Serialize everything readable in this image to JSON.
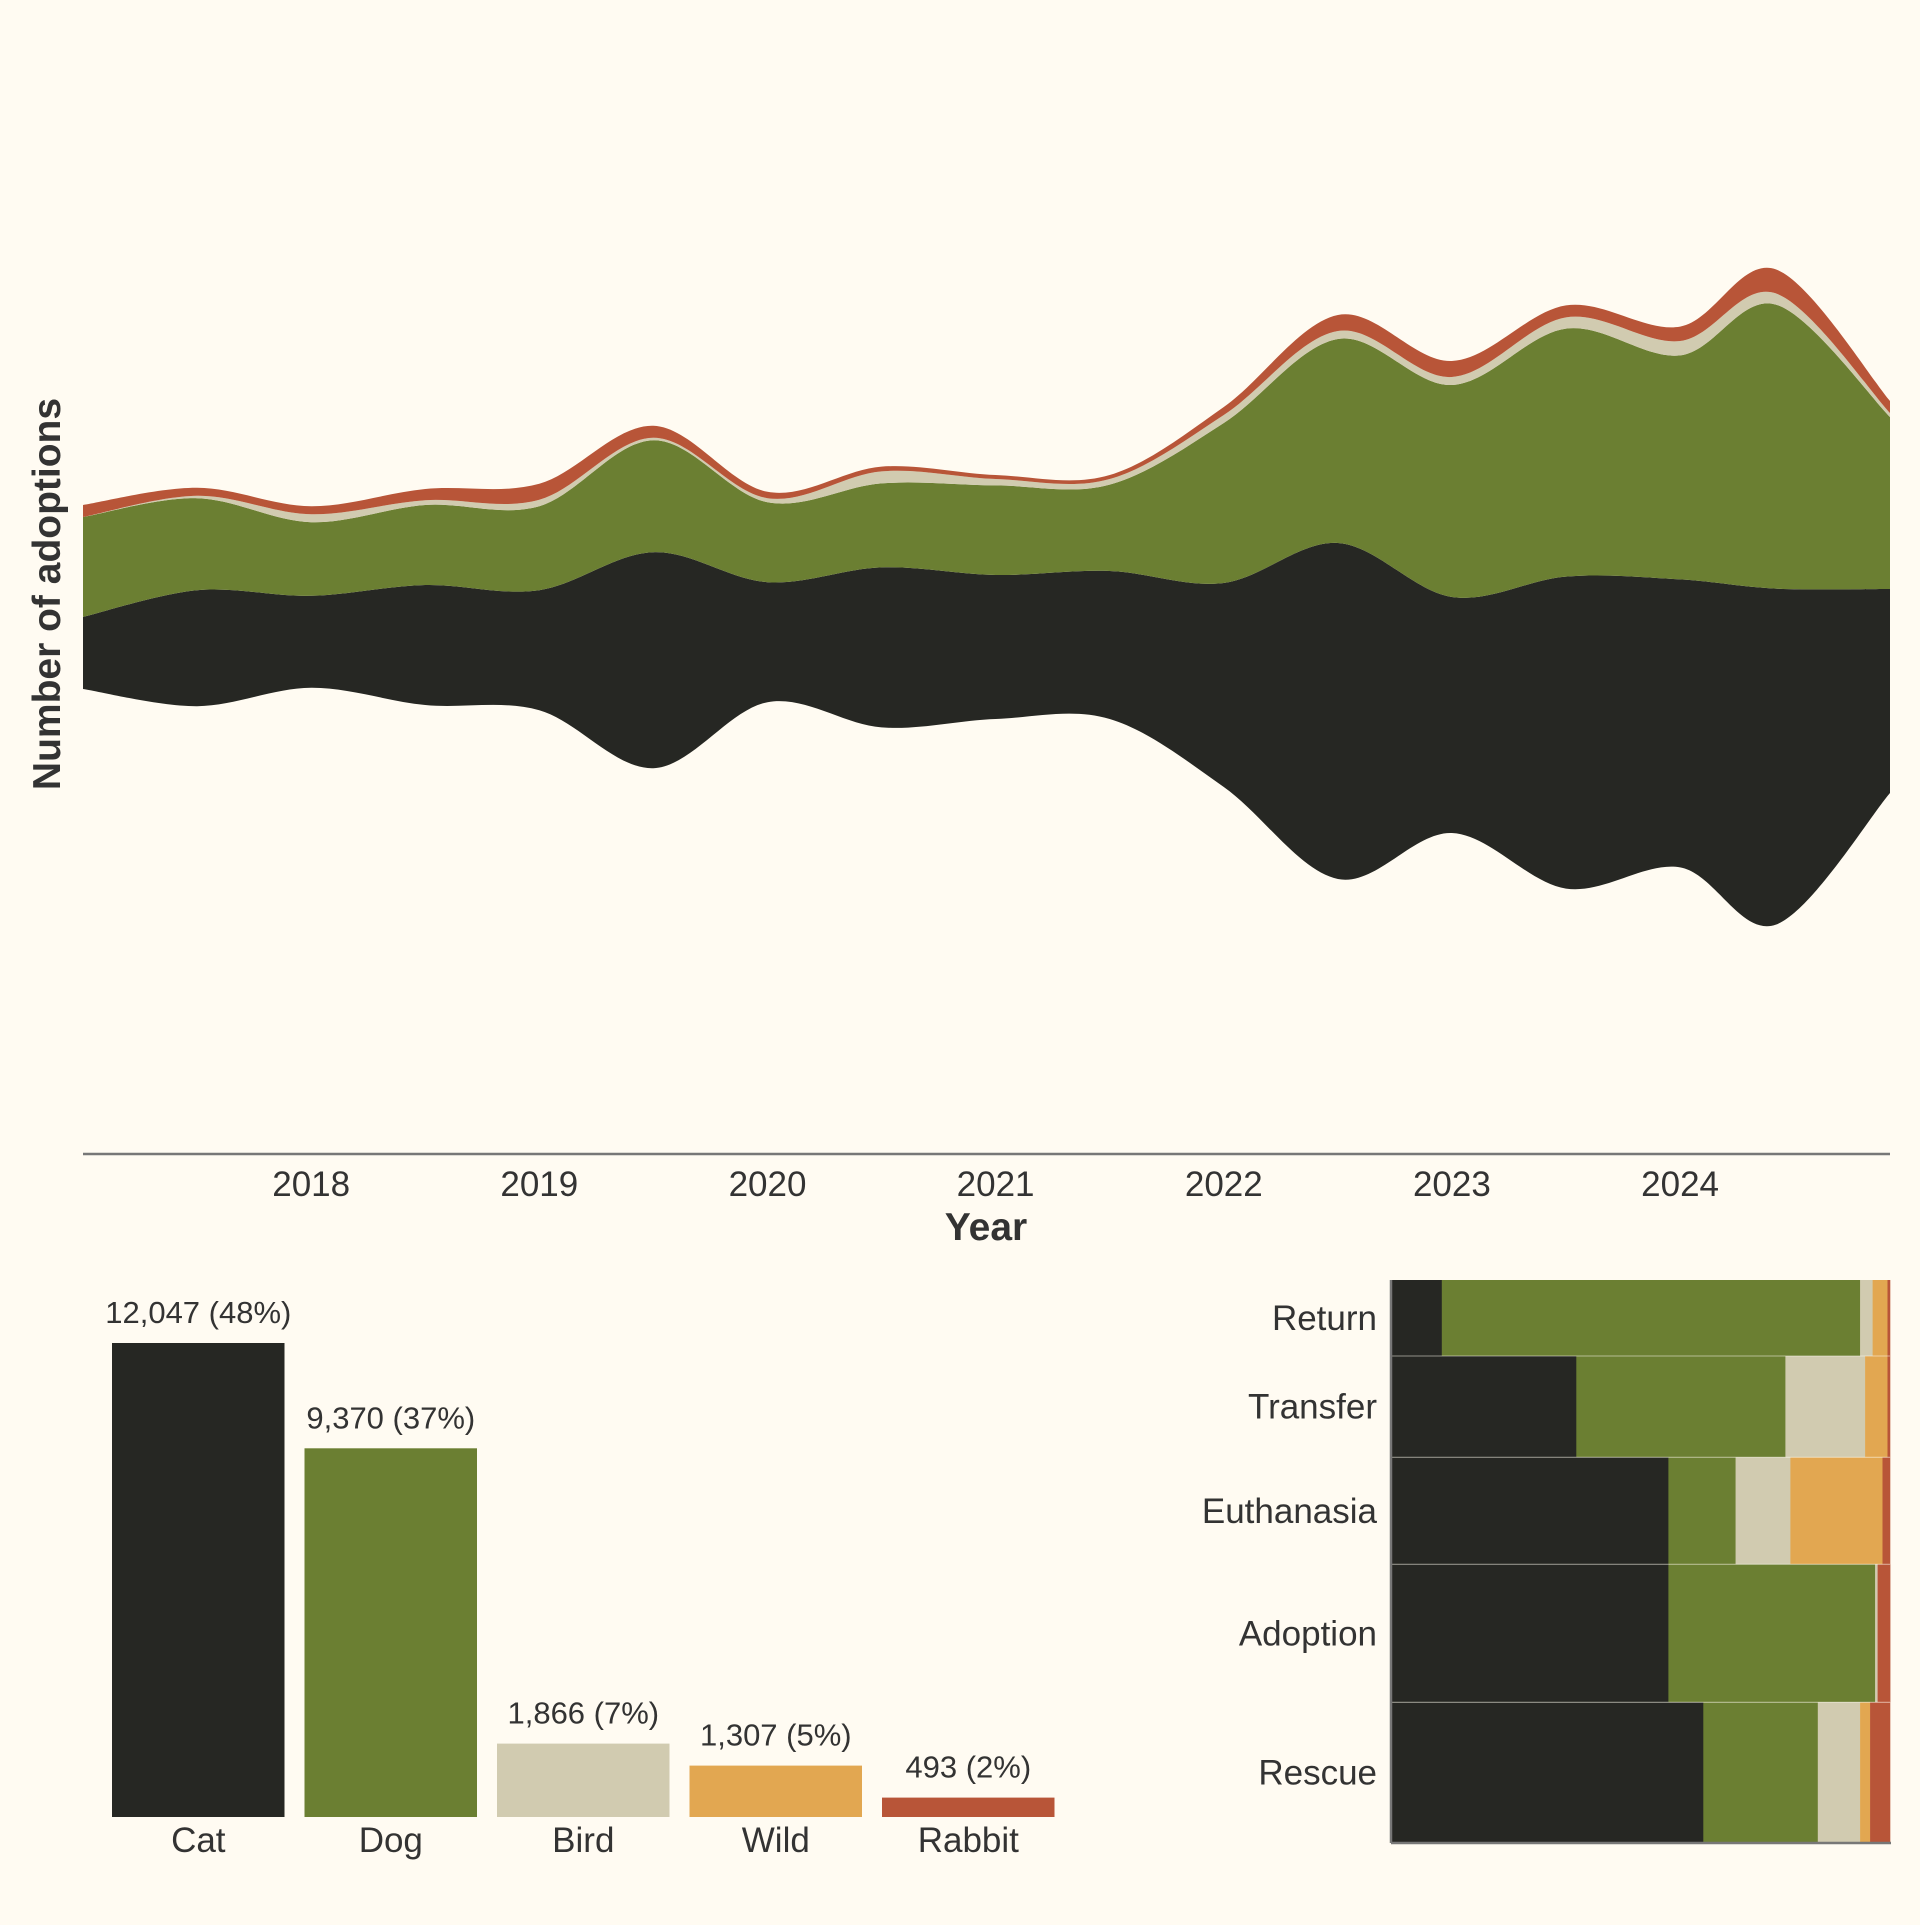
{
  "colors": {
    "background": "#fffbf2",
    "Cat": "#262723",
    "Dog": "#6b7f32",
    "Bird": "#d1cbb0",
    "Wild": "#e2a751",
    "Rabbit": "#b85538",
    "axis": "#777777",
    "text": "#333333"
  },
  "chart_data": [
    {
      "type": "area",
      "subtype": "streamgraph",
      "xlabel": "Year",
      "ylabel": "Number of adoptions",
      "x_ticks": [
        "2018",
        "2019",
        "2020",
        "2021",
        "2022",
        "2023",
        "2024"
      ],
      "xlim": [
        2017.0,
        2024.92
      ],
      "y_ticks_shown": false,
      "grid": false,
      "legend": "none",
      "x": [
        2017.0,
        2017.5,
        2018.0,
        2018.5,
        2019.0,
        2019.5,
        2020.0,
        2020.5,
        2021.0,
        2021.5,
        2022.0,
        2022.5,
        2023.0,
        2023.5,
        2024.0,
        2024.42,
        2024.92
      ],
      "series": [
        {
          "name": "Cat",
          "values": [
            90,
            145,
            115,
            150,
            150,
            270,
            150,
            200,
            180,
            185,
            255,
            420,
            295,
            390,
            360,
            420,
            255
          ]
        },
        {
          "name": "Dog",
          "values": [
            125,
            115,
            92,
            100,
            105,
            140,
            100,
            105,
            112,
            108,
            200,
            255,
            265,
            310,
            280,
            355,
            215
          ]
        },
        {
          "name": "Bird",
          "values": [
            0,
            3,
            10,
            6,
            8,
            3,
            5,
            15,
            8,
            7,
            10,
            10,
            10,
            14,
            18,
            14,
            5
          ]
        },
        {
          "name": "Wild",
          "values": [
            0,
            0,
            0,
            0,
            0,
            0,
            0,
            0,
            0,
            0,
            0,
            0,
            0,
            0,
            0,
            0,
            0
          ]
        },
        {
          "name": "Rabbit",
          "values": [
            15,
            10,
            10,
            14,
            20,
            15,
            8,
            6,
            5,
            5,
            10,
            20,
            20,
            15,
            18,
            30,
            15
          ]
        }
      ]
    },
    {
      "type": "bar",
      "categories": [
        "Cat",
        "Dog",
        "Bird",
        "Wild",
        "Rabbit"
      ],
      "values": [
        12047,
        9370,
        1866,
        1307,
        493
      ],
      "data_labels": [
        "12,047 (48%)",
        "9,370 (37%)",
        "1,866 (7%)",
        "1,307 (5%)",
        "493 (2%)"
      ],
      "ylim": [
        0,
        12047
      ],
      "grid": false,
      "legend": "none"
    },
    {
      "type": "bar",
      "subtype": "marimekko",
      "orientation": "horizontal",
      "categories": [
        "Return",
        "Transfer",
        "Euthanasia",
        "Adoption",
        "Rescue"
      ],
      "row_shares": [
        0.135,
        0.18,
        0.19,
        0.245,
        0.25
      ],
      "series_order": [
        "Cat",
        "Dog",
        "Bird",
        "Wild",
        "Rabbit"
      ],
      "values": [
        [
          0.1,
          0.84,
          0.025,
          0.03,
          0.005
        ],
        [
          0.37,
          0.42,
          0.16,
          0.045,
          0.005
        ],
        [
          0.555,
          0.135,
          0.11,
          0.185,
          0.015
        ],
        [
          0.555,
          0.415,
          0.005,
          0.0,
          0.025
        ],
        [
          0.625,
          0.23,
          0.085,
          0.02,
          0.04
        ]
      ],
      "xlim": [
        0,
        1
      ],
      "grid": false,
      "legend": "none"
    }
  ]
}
